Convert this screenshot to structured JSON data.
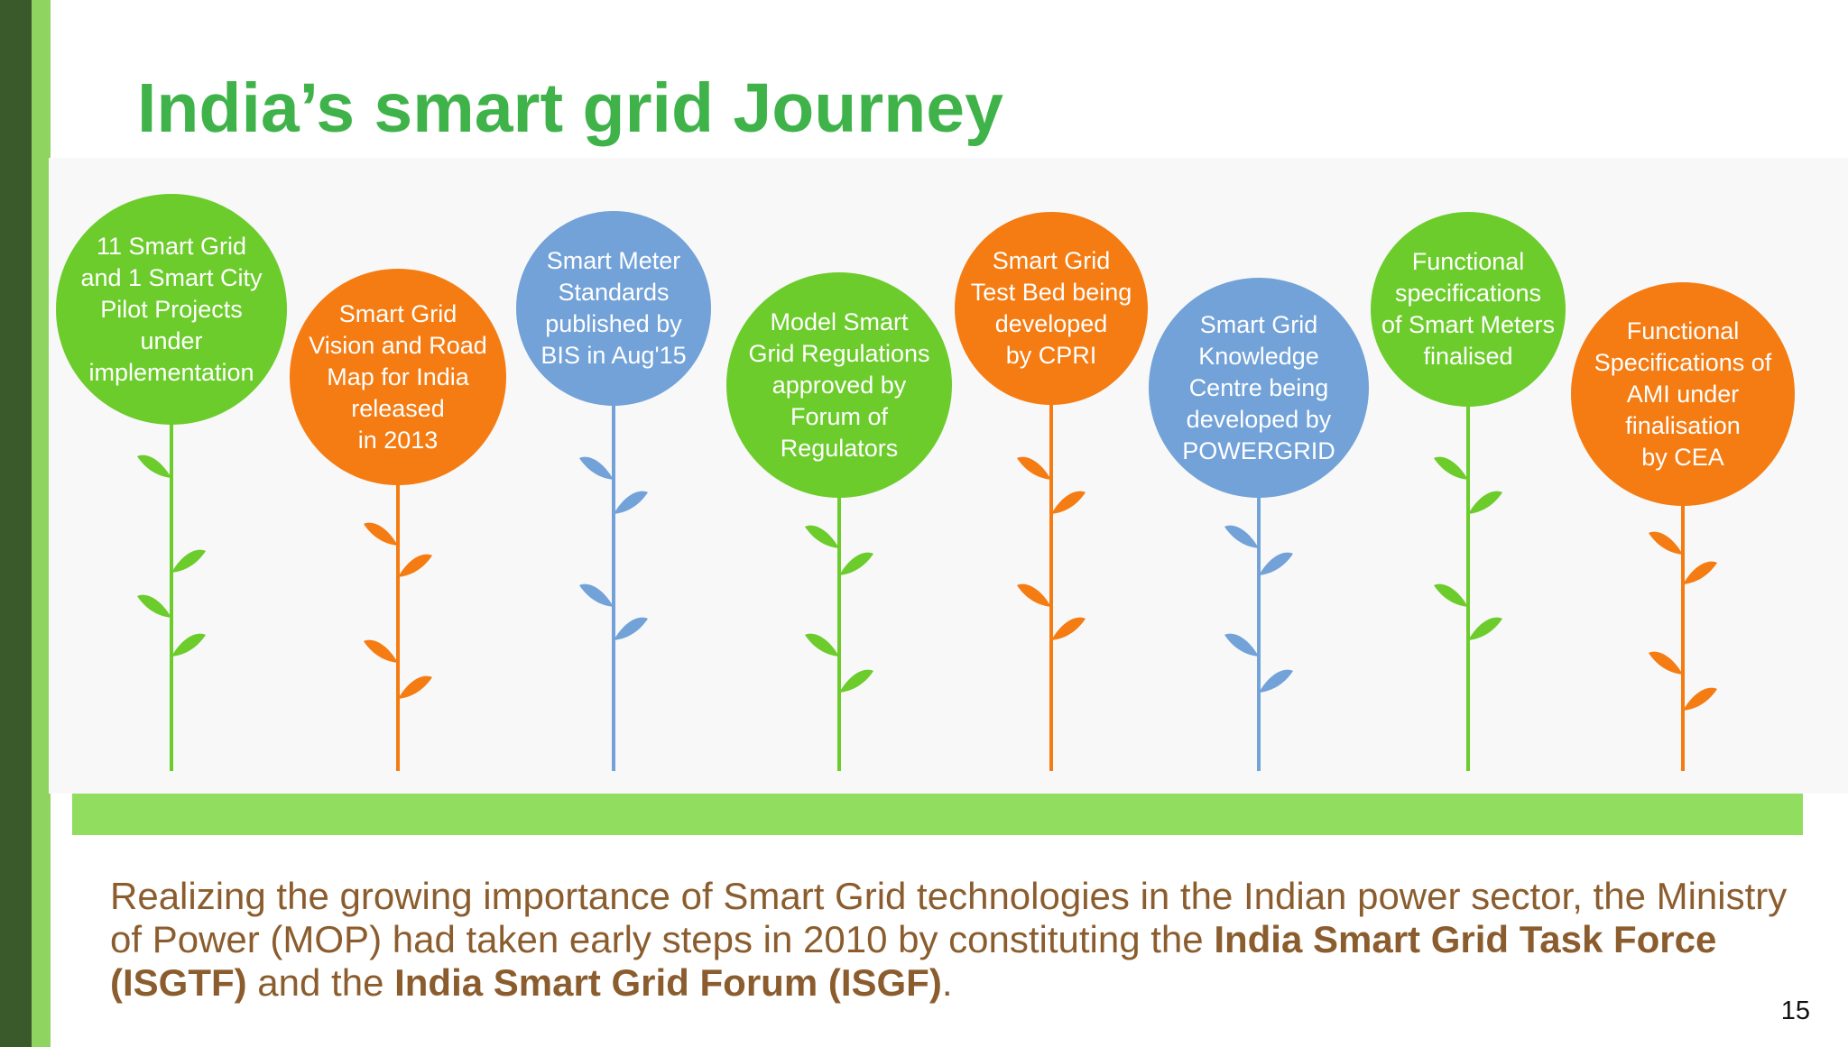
{
  "slide": {
    "title": "India’s smart grid Journey",
    "page_number": "15"
  },
  "colors": {
    "green": "#6ccc2c",
    "orange": "#f47c13",
    "blue": "#72a2d8",
    "title": "#3fb34a",
    "body_text": "#8b5d2e",
    "band": "#90dd60"
  },
  "flowers": [
    {
      "color": "green",
      "lines": [
        "11 Smart Grid",
        "and 1 Smart City",
        "Pilot Projects",
        "under",
        "implementation"
      ]
    },
    {
      "color": "orange",
      "lines": [
        "Smart Grid",
        "Vision and Road",
        "Map for India",
        "released",
        "in 2013"
      ]
    },
    {
      "color": "blue",
      "lines": [
        "Smart Meter",
        "Standards",
        "published by",
        "BIS in Aug'15"
      ]
    },
    {
      "color": "green",
      "lines": [
        "Model Smart",
        "Grid Regulations",
        "approved by",
        "Forum of",
        "Regulators"
      ]
    },
    {
      "color": "orange",
      "lines": [
        "Smart Grid",
        "Test Bed being",
        "developed",
        "by CPRI"
      ]
    },
    {
      "color": "blue",
      "lines": [
        "Smart Grid",
        "Knowledge",
        "Centre being",
        "developed by",
        "POWERGRID"
      ]
    },
    {
      "color": "green",
      "lines": [
        "Functional",
        "specifications",
        "of Smart Meters",
        "finalised"
      ]
    },
    {
      "color": "orange",
      "lines": [
        "Functional",
        "Specifications of",
        "AMI under",
        "finalisation",
        "by CEA"
      ]
    }
  ],
  "body": {
    "p1": "Realizing the growing importance of Smart Grid technologies in the Indian power sector, the Ministry of Power (MOP) had taken early steps in 2010 by constituting the ",
    "b1": "India Smart Grid Task Force (ISGTF)",
    "p2": " and the ",
    "b2": "India Smart Grid Forum (ISGF)",
    "p3": "."
  }
}
